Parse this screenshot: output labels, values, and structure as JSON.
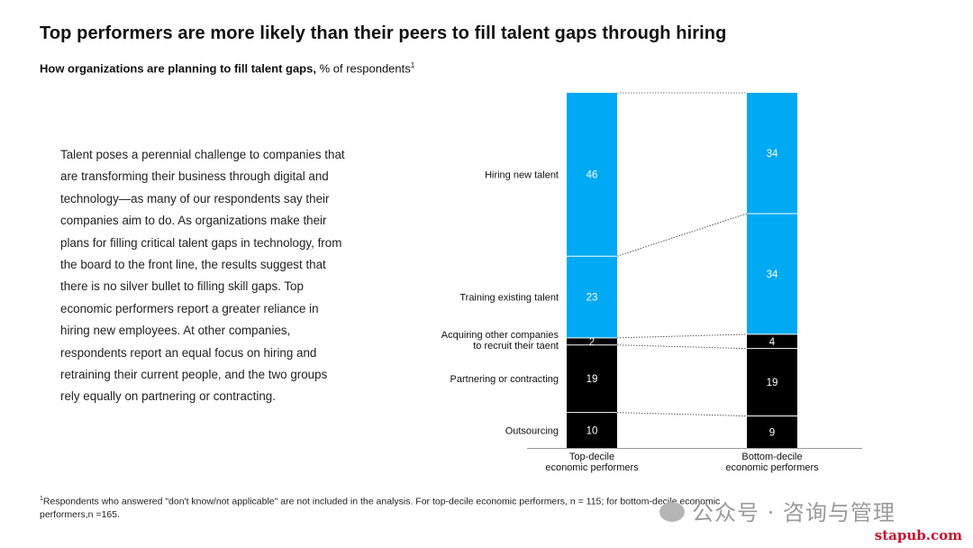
{
  "title": "Top performers are more likely than their peers to fill talent gaps through hiring",
  "subtitle_bold": "How organizations are planning to fill talent gaps,",
  "subtitle_rest": " % of respondents",
  "subtitle_note": "1",
  "body_text": "Talent poses a perennial challenge to companies that are transforming their business through digital and technology—as many of our respondents say their companies aim to do. As organizations make their plans for filling critical talent gaps in technology, from the board to the front line, the results suggest that there is no silver bullet to filling skill gaps. Top economic performers report a greater reliance in hiring new employees. At other companies, respondents report an equal focus on hiring and retraining their current people, and the two groups rely equally on partnering or contracting.",
  "footnote_mark": "1",
  "footnote": "Respondents who answered \"don't know/not applicable\" are not included in the analysis. For top-decile economic performers, n = 115; for bottom-decile economic performers,n =165.",
  "watermark": "公众号 · 咨询与管理",
  "site": "stapub.com",
  "colors": {
    "blue": "#00A9F4",
    "black": "#000000"
  },
  "chart_data": {
    "type": "bar",
    "stacked": true,
    "categories": [
      [
        "Top-decile",
        "economic performers"
      ],
      [
        "Bottom-decile",
        "economic performers"
      ]
    ],
    "series": [
      {
        "name": "Hiring new talent",
        "label_lines": [
          "Hiring new talent"
        ],
        "values": [
          46,
          34
        ],
        "color": "#00A9F4"
      },
      {
        "name": "Training existing talent",
        "label_lines": [
          "Training existing talent"
        ],
        "values": [
          23,
          34
        ],
        "color": "#00A9F4"
      },
      {
        "name": "Acquiring other companies to recruit their taent",
        "label_lines": [
          "Acquiring other companies",
          "to recruit their taent"
        ],
        "values": [
          2,
          4
        ],
        "color": "#000000"
      },
      {
        "name": "Partnering or contracting",
        "label_lines": [
          "Partnering or contracting"
        ],
        "values": [
          19,
          19
        ],
        "color": "#000000"
      },
      {
        "name": "Outsourcing",
        "label_lines": [
          "Outsourcing"
        ],
        "values": [
          10,
          9
        ],
        "color": "#000000"
      }
    ]
  }
}
